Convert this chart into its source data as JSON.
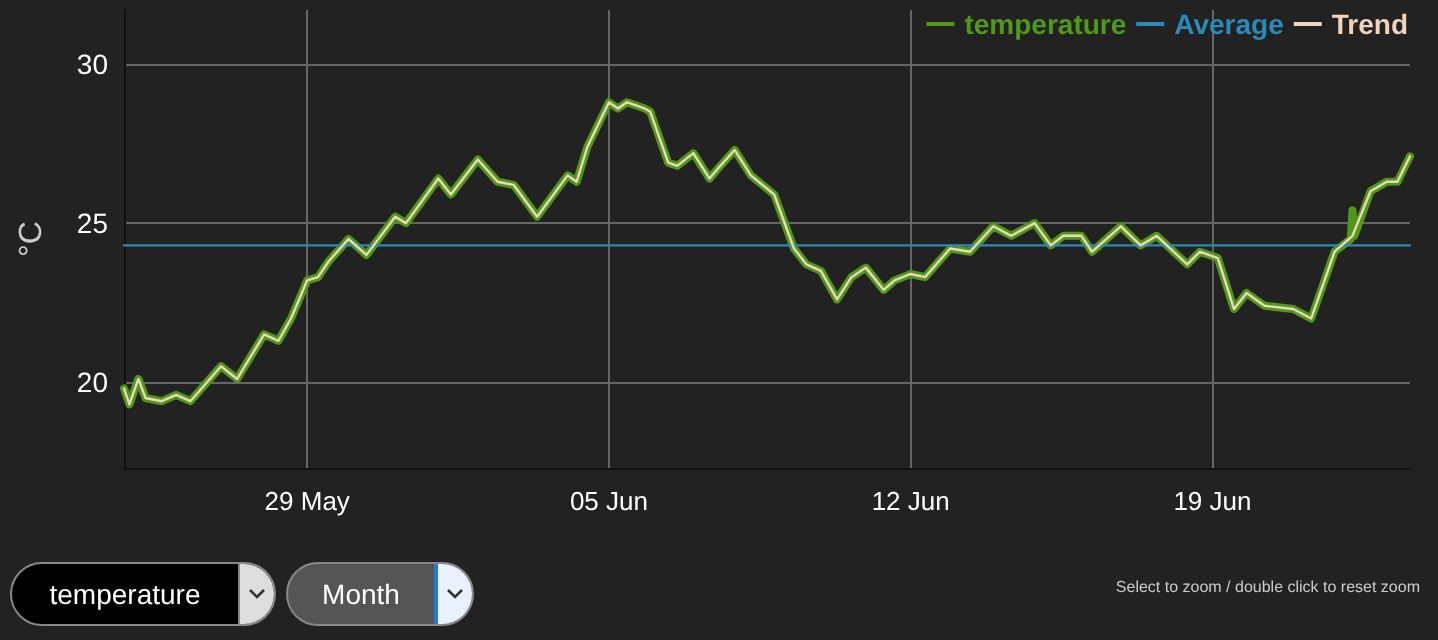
{
  "chart_data": {
    "type": "line",
    "ylabel": "°C",
    "legend": "top right",
    "grid": true,
    "marker": "none",
    "line_style": "solid",
    "annotations": [
      "temperature",
      "Month",
      "Select to zoom / double click to reset zoom"
    ],
    "xlim": [
      "--05-24T18:00",
      "--06-23T14:00"
    ],
    "xticks": [
      {
        "value": "--05-29",
        "label": "29 May"
      },
      {
        "value": "--06-05",
        "label": "05 Jun"
      },
      {
        "value": "--06-12",
        "label": "12 Jun"
      },
      {
        "value": "--06-19",
        "label": "19 Jun"
      }
    ],
    "ylim": [
      17.3,
      31.7
    ],
    "yticks": [
      20,
      25,
      30
    ],
    "x": [
      "--05-24T18:00",
      "--05-24T21:00",
      "--05-25T02:00",
      "--05-25T06:00",
      "--05-25T15:00",
      "--05-25T23:00",
      "--05-26T07:00",
      "--05-27T00:00",
      "--05-27T09:00",
      "--05-28T00:00",
      "--05-28T08:00",
      "--05-28T15:00",
      "--05-29T00:00",
      "--05-29T06:00",
      "--05-29T12:00",
      "--05-29T23:00",
      "--05-30T09:00",
      "--05-31T01:00",
      "--05-31T07:00",
      "--06-01T01:00",
      "--06-01T08:00",
      "--06-01T23:00",
      "--06-02T10:00",
      "--06-02T19:00",
      "--06-03T08:00",
      "--06-04T01:00",
      "--06-04T06:00",
      "--06-04T12:00",
      "--06-05T00:00",
      "--06-05T05:00",
      "--06-05T10:00",
      "--06-05T20:00",
      "--06-05T23:00",
      "--06-06T09:00",
      "--06-06T14:00",
      "--06-06T23:00",
      "--06-07T08:00",
      "--06-07T14:00",
      "--06-07T22:00",
      "--06-08T07:00",
      "--06-08T20:00",
      "--06-09T07:00",
      "--06-09T14:00",
      "--06-09T22:00",
      "--06-10T07:00",
      "--06-10T15:00",
      "--06-10T23:00",
      "--06-11T09:00",
      "--06-11T15:00",
      "--06-12T00:00",
      "--06-12T08:00",
      "--06-12T22:00",
      "--06-13T09:00",
      "--06-13T22:00",
      "--06-14T08:00",
      "--06-14T21:00",
      "--06-15T06:00",
      "--06-15T13:00",
      "--06-15T23:00",
      "--06-16T05:00",
      "--06-16T21:00",
      "--06-17T08:00",
      "--06-17T17:00",
      "--06-18T10:00",
      "--06-18T17:00",
      "--06-19T03:00",
      "--06-19T12:00",
      "--06-19T19:00",
      "--06-20T05:00",
      "--06-20T21:00",
      "--06-21T07:00",
      "--06-21T20:00",
      "--06-22T06:00",
      "--06-22T16:00",
      "--06-23T01:00",
      "--06-23T07:00",
      "--06-23T14:00"
    ],
    "series": [
      {
        "name": "temperature",
        "color": "#4e9a18",
        "x": [
          "--05-24T18:00",
          "--05-24T21:00",
          "--05-25T02:00",
          "--05-25T06:00",
          "--05-25T15:00",
          "--05-25T23:00",
          "--05-26T07:00",
          "--05-27T00:00",
          "--05-27T09:00",
          "--05-28T00:00",
          "--05-28T08:00",
          "--05-28T15:00",
          "--05-29T00:00",
          "--05-29T06:00",
          "--05-29T12:00",
          "--05-29T23:00",
          "--05-30T09:00",
          "--05-31T01:00",
          "--05-31T07:00",
          "--06-01T01:00",
          "--06-01T08:00",
          "--06-01T23:00",
          "--06-02T10:00",
          "--06-02T19:00",
          "--06-03T08:00",
          "--06-04T01:00",
          "--06-04T06:00",
          "--06-04T12:00",
          "--06-05T00:00",
          "--06-05T05:00",
          "--06-05T10:00",
          "--06-05T20:00",
          "--06-05T23:00",
          "--06-06T09:00",
          "--06-06T14:00",
          "--06-06T23:00",
          "--06-07T08:00",
          "--06-07T14:00",
          "--06-07T22:00",
          "--06-08T07:00",
          "--06-08T20:00",
          "--06-09T07:00",
          "--06-09T14:00",
          "--06-09T22:00",
          "--06-10T07:00",
          "--06-10T15:00",
          "--06-10T23:00",
          "--06-11T09:00",
          "--06-11T15:00",
          "--06-12T00:00",
          "--06-12T08:00",
          "--06-12T22:00",
          "--06-13T09:00",
          "--06-13T22:00",
          "--06-14T08:00",
          "--06-14T21:00",
          "--06-15T06:00",
          "--06-15T13:00",
          "--06-15T23:00",
          "--06-16T05:00",
          "--06-16T21:00",
          "--06-17T08:00",
          "--06-17T17:00",
          "--06-18T10:00",
          "--06-18T17:00",
          "--06-19T03:00",
          "--06-19T12:00",
          "--06-19T19:00",
          "--06-20T05:00",
          "--06-20T21:00",
          "--06-21T07:00",
          "--06-21T20:00",
          "--06-22T05:00",
          "--06-22T06:00",
          "--06-22T07:00",
          "--06-22T16:00",
          "--06-23T01:00",
          "--06-23T07:00",
          "--06-23T14:00"
        ],
        "values": [
          19.8,
          19.3,
          20.1,
          19.5,
          19.4,
          19.6,
          19.4,
          20.5,
          20.1,
          21.5,
          21.3,
          22.0,
          23.2,
          23.3,
          23.8,
          24.5,
          24.0,
          25.2,
          25.0,
          26.4,
          25.9,
          27.0,
          26.3,
          26.2,
          25.2,
          26.5,
          26.3,
          27.4,
          28.8,
          28.6,
          28.8,
          28.6,
          28.5,
          26.9,
          26.8,
          27.2,
          26.4,
          26.8,
          27.3,
          26.5,
          25.9,
          24.2,
          23.7,
          23.5,
          22.6,
          23.3,
          23.6,
          22.9,
          23.2,
          23.4,
          23.3,
          24.2,
          24.1,
          24.9,
          24.6,
          25.0,
          24.3,
          24.6,
          24.6,
          24.1,
          24.9,
          24.3,
          24.6,
          23.7,
          24.1,
          23.9,
          22.3,
          22.8,
          22.4,
          22.3,
          22.0,
          24.1,
          24.5,
          25.4,
          24.6,
          26.0,
          26.3,
          26.3,
          27.1
        ]
      },
      {
        "name": "Average",
        "color": "#2a8ab8",
        "x": [
          "--05-24T18:00",
          "--06-23T14:00"
        ],
        "values": [
          24.3,
          24.3
        ]
      },
      {
        "name": "Trend",
        "color": "#f0d4bc",
        "values": [
          19.8,
          19.3,
          20.1,
          19.5,
          19.4,
          19.6,
          19.4,
          20.5,
          20.1,
          21.5,
          21.3,
          22.0,
          23.2,
          23.3,
          23.8,
          24.5,
          24.0,
          25.2,
          25.0,
          26.4,
          25.9,
          27.0,
          26.3,
          26.2,
          25.2,
          26.5,
          26.3,
          27.4,
          28.8,
          28.6,
          28.8,
          28.6,
          28.5,
          26.9,
          26.8,
          27.2,
          26.4,
          26.8,
          27.3,
          26.5,
          25.9,
          24.2,
          23.7,
          23.5,
          22.6,
          23.3,
          23.6,
          22.9,
          23.2,
          23.4,
          23.3,
          24.2,
          24.1,
          24.9,
          24.6,
          25.0,
          24.3,
          24.6,
          24.6,
          24.1,
          24.9,
          24.3,
          24.6,
          23.7,
          24.1,
          23.9,
          22.3,
          22.8,
          22.4,
          22.3,
          22.0,
          24.1,
          24.6,
          26.0,
          26.3,
          26.3,
          27.1
        ]
      }
    ]
  }
}
